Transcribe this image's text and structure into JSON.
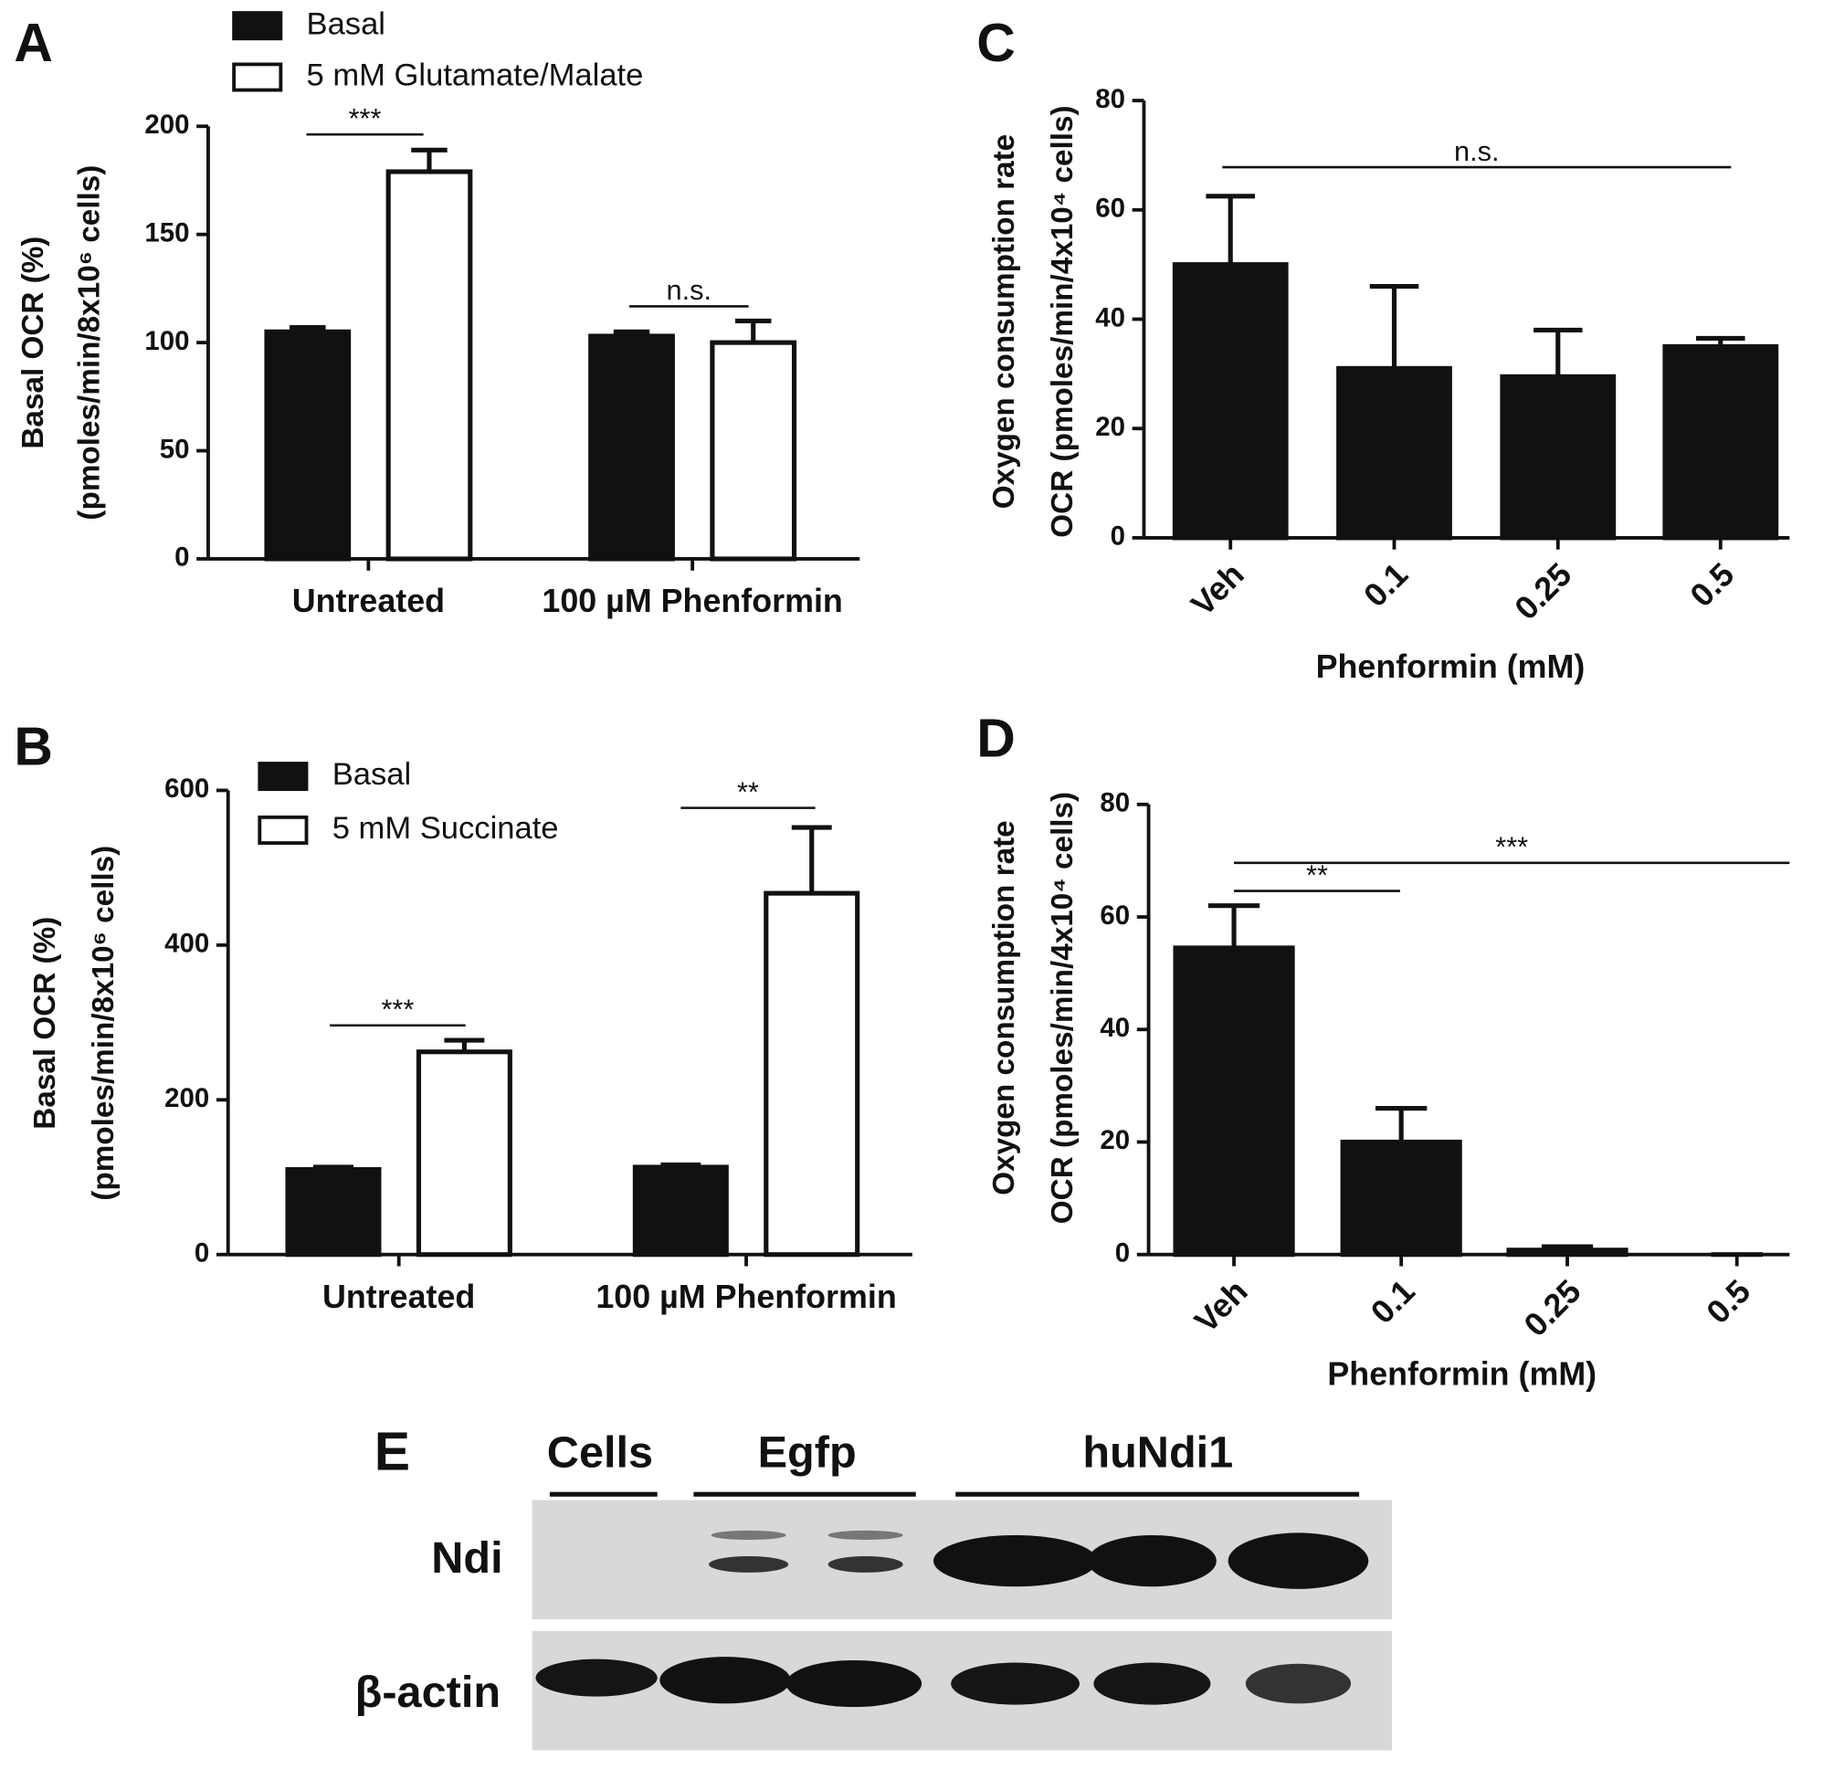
{
  "chart_data": [
    {
      "type": "bar",
      "panel": "A",
      "ylabel": [
        "Basal OCR (%)",
        "(pmoles/min/8x10⁶ cells)"
      ],
      "categories": [
        "Untreated",
        "100 µM Phenformin"
      ],
      "series": [
        {
          "name": "Basal",
          "color": "#111111",
          "values": [
            105,
            103
          ],
          "errors": [
            2,
            2
          ]
        },
        {
          "name": "5 mM Glutamate/Malate",
          "color": "#ffffff",
          "values": [
            179,
            100
          ],
          "errors": [
            10,
            10
          ]
        }
      ],
      "ylim": [
        0,
        200
      ],
      "yticks": [
        0,
        50,
        100,
        150,
        200
      ],
      "annotations": [
        {
          "text": "***"
        },
        {
          "text": "n.s."
        }
      ]
    },
    {
      "type": "bar",
      "panel": "B",
      "ylabel": [
        "Basal OCR (%)",
        "(pmoles/min/8x10⁶ cells)"
      ],
      "categories": [
        "Untreated",
        "100 µM Phenformin"
      ],
      "series": [
        {
          "name": "Basal",
          "color": "#111111",
          "values": [
            110,
            113
          ],
          "errors": [
            3,
            3
          ]
        },
        {
          "name": "5 mM Succinate",
          "color": "#ffffff",
          "values": [
            262,
            467
          ],
          "errors": [
            15,
            85
          ]
        }
      ],
      "ylim": [
        0,
        600
      ],
      "yticks": [
        0,
        200,
        400,
        600
      ],
      "annotations": [
        {
          "text": "***"
        },
        {
          "text": "**"
        }
      ]
    },
    {
      "type": "bar",
      "panel": "C",
      "ylabel": [
        "Oxygen consumption rate",
        "OCR (pmoles/min/4x10⁴ cells)"
      ],
      "xlabel": "Phenformin (mM)",
      "categories": [
        "Veh",
        "0.1",
        "0.25",
        "0.5"
      ],
      "series": [
        {
          "color": "#111111",
          "values": [
            50,
            31,
            29.5,
            35
          ],
          "errors": [
            12.5,
            15,
            8.5,
            1.5
          ]
        }
      ],
      "ylim": [
        0,
        80
      ],
      "yticks": [
        0,
        20,
        40,
        60,
        80
      ],
      "annotations": [
        {
          "text": "n.s."
        }
      ]
    },
    {
      "type": "bar",
      "panel": "D",
      "ylabel": [
        "Oxygen consumption rate",
        "OCR (pmoles/min/4x10⁴ cells)"
      ],
      "xlabel": "Phenformin (mM)",
      "categories": [
        "Veh",
        "0.1",
        "0.25",
        "0.5"
      ],
      "series": [
        {
          "color": "#111111",
          "values": [
            54.5,
            20,
            0.8,
            0
          ],
          "errors": [
            7.5,
            6,
            0.6,
            0
          ]
        }
      ],
      "ylim": [
        0,
        80
      ],
      "yticks": [
        0,
        20,
        40,
        60,
        80
      ],
      "annotations": [
        {
          "text": "**"
        },
        {
          "text": "***"
        }
      ]
    }
  ],
  "blot": {
    "panel": "E",
    "groups": [
      "Cells",
      "Egfp",
      "huNdi1"
    ],
    "rows": [
      "Ndi",
      "β-actin"
    ]
  }
}
